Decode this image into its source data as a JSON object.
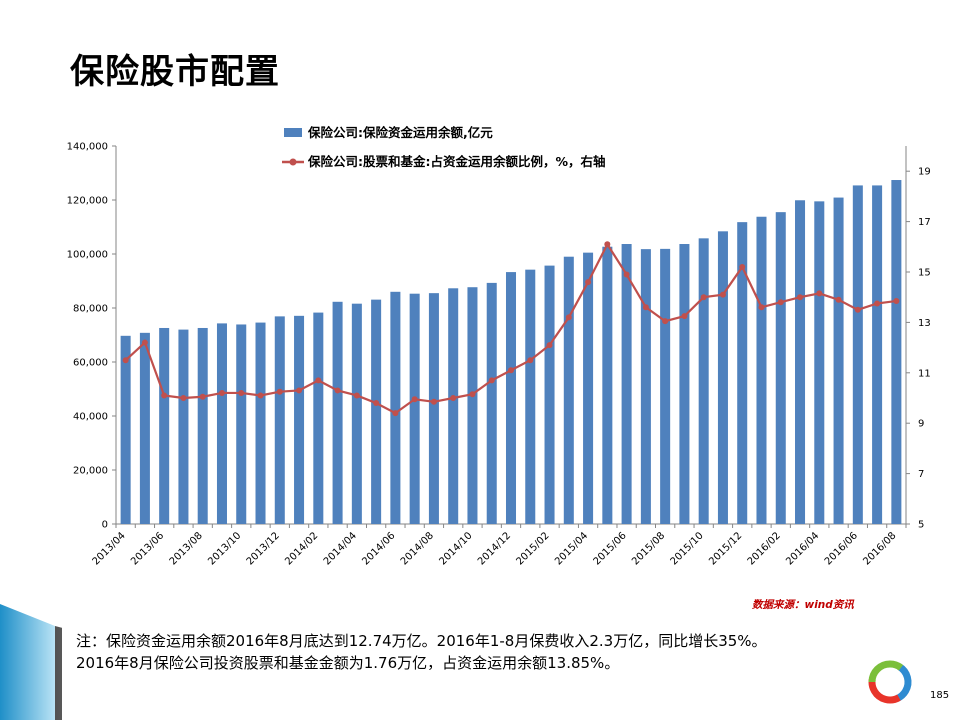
{
  "title": "保险股市配置",
  "legend": {
    "bar_label": "保险公司:保险资金运用余额,亿元",
    "line_label": "保险公司:股票和基金:占资金运用余额比例，%，右轴"
  },
  "source_text": "数据来源：wind资讯",
  "note": {
    "line1": "注：保险资金运用余额2016年8月底达到12.74万亿。2016年1-8月保费收入2.3万亿，同比增长35%。",
    "line2": "2016年8月保险公司投资股票和基金金额为1.76万亿，占资金运用余额13.85%。"
  },
  "page_number": "185",
  "colors": {
    "bar": "#4f81bd",
    "line": "#c0504d",
    "axis": "#868686"
  },
  "chart_data": {
    "type": "bar+line",
    "x": [
      "2013/04",
      "2013/05",
      "2013/06",
      "2013/07",
      "2013/08",
      "2013/09",
      "2013/10",
      "2013/11",
      "2013/12",
      "2014/01",
      "2014/02",
      "2014/03",
      "2014/04",
      "2014/05",
      "2014/06",
      "2014/07",
      "2014/08",
      "2014/09",
      "2014/10",
      "2014/11",
      "2014/12",
      "2015/01",
      "2015/02",
      "2015/03",
      "2015/04",
      "2015/05",
      "2015/06",
      "2015/07",
      "2015/08",
      "2015/09",
      "2015/10",
      "2015/11",
      "2015/12",
      "2016/01",
      "2016/02",
      "2016/03",
      "2016/04",
      "2016/05",
      "2016/06",
      "2016/07",
      "2016/08"
    ],
    "x_tick_labels": [
      "2013/04",
      "2013/06",
      "2013/08",
      "2013/10",
      "2013/12",
      "2014/02",
      "2014/04",
      "2014/06",
      "2014/08",
      "2014/10",
      "2014/12",
      "2015/02",
      "2015/04",
      "2015/06",
      "2015/08",
      "2015/10",
      "2015/12",
      "2016/02",
      "2016/04",
      "2016/06",
      "2016/08"
    ],
    "series": [
      {
        "name": "保险公司:保险资金运用余额,亿元",
        "type": "bar",
        "axis": "left",
        "values": [
          69700,
          70800,
          72600,
          72000,
          72600,
          74300,
          73900,
          74600,
          76900,
          77100,
          78300,
          82300,
          81600,
          83100,
          86000,
          85300,
          85500,
          87300,
          87700,
          89300,
          93300,
          94200,
          95700,
          99000,
          100500,
          102700,
          103700,
          101800,
          101900,
          103700,
          105800,
          108400,
          111800,
          113800,
          115500,
          119900,
          119500,
          120900,
          125400,
          125400,
          127400
        ]
      },
      {
        "name": "保险公司:股票和基金:占资金运用余额比例，%，右轴",
        "type": "line",
        "axis": "right",
        "values": [
          11.5,
          12.2,
          10.1,
          10.0,
          10.05,
          10.2,
          10.2,
          10.1,
          10.25,
          10.3,
          10.7,
          10.3,
          10.1,
          9.8,
          9.4,
          9.95,
          9.85,
          10.0,
          10.15,
          10.7,
          11.1,
          11.5,
          12.1,
          13.2,
          14.6,
          16.1,
          14.9,
          13.6,
          13.05,
          13.25,
          14.0,
          14.1,
          15.2,
          13.6,
          13.8,
          14.0,
          14.15,
          13.9,
          13.5,
          13.75,
          13.85
        ]
      }
    ],
    "y_left": {
      "min": 0,
      "max": 140000,
      "ticks": [
        0,
        20000,
        40000,
        60000,
        80000,
        100000,
        120000,
        140000
      ],
      "tick_labels": [
        "0",
        "20,000",
        "40,000",
        "60,000",
        "80,000",
        "100,000",
        "120,000",
        "140,000"
      ]
    },
    "y_right": {
      "min": 5,
      "max": 20,
      "ticks": [
        5,
        7,
        9,
        11,
        13,
        15,
        17,
        19
      ],
      "tick_labels": [
        "5",
        "7",
        "9",
        "11",
        "13",
        "15",
        "17",
        "19"
      ]
    },
    "grid": false,
    "legend_position": "top-left"
  }
}
